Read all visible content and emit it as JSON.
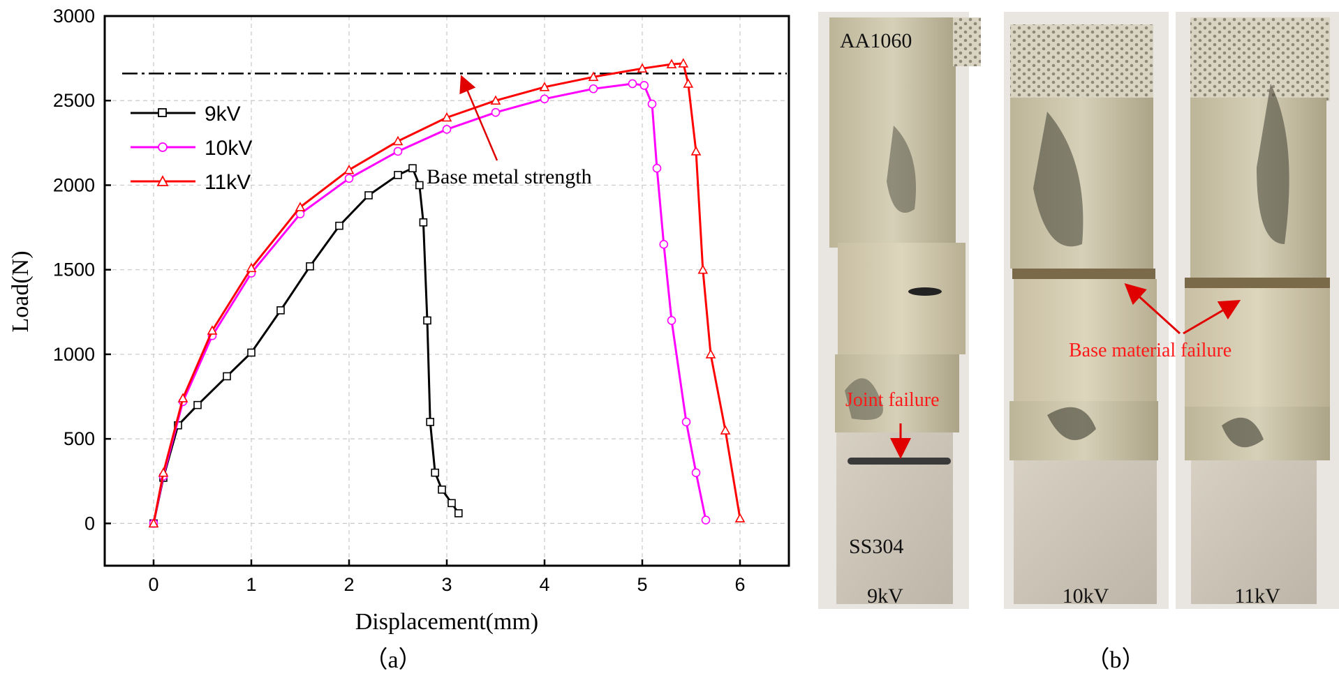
{
  "chart_data": {
    "type": "line",
    "xlabel": "Displacement(mm)",
    "ylabel": "Load(N)",
    "xlim": [
      -0.5,
      6.5
    ],
    "ylim": [
      -250,
      3000
    ],
    "x_ticks": [
      0,
      1,
      2,
      3,
      4,
      5,
      6
    ],
    "y_ticks": [
      0,
      500,
      1000,
      1500,
      2000,
      2500,
      3000
    ],
    "grid": true,
    "legend_position": "top-left",
    "reference_line": {
      "y": 2660,
      "style": "dash-dot",
      "label": "Base metal strength"
    },
    "series": [
      {
        "name": "9kV",
        "color": "#000000",
        "marker": "square",
        "points": [
          [
            0,
            0
          ],
          [
            0.1,
            270
          ],
          [
            0.25,
            580
          ],
          [
            0.45,
            700
          ],
          [
            0.75,
            870
          ],
          [
            1.0,
            1010
          ],
          [
            1.3,
            1260
          ],
          [
            1.6,
            1520
          ],
          [
            1.9,
            1760
          ],
          [
            2.2,
            1940
          ],
          [
            2.5,
            2060
          ],
          [
            2.65,
            2100
          ],
          [
            2.72,
            2000
          ],
          [
            2.76,
            1780
          ],
          [
            2.8,
            1200
          ],
          [
            2.83,
            600
          ],
          [
            2.88,
            300
          ],
          [
            2.95,
            200
          ],
          [
            3.05,
            120
          ],
          [
            3.12,
            60
          ]
        ]
      },
      {
        "name": "10kV",
        "color": "#ff00ff",
        "marker": "circle",
        "points": [
          [
            0,
            0
          ],
          [
            0.1,
            280
          ],
          [
            0.3,
            720
          ],
          [
            0.6,
            1110
          ],
          [
            1.0,
            1480
          ],
          [
            1.5,
            1830
          ],
          [
            2.0,
            2040
          ],
          [
            2.5,
            2200
          ],
          [
            3.0,
            2330
          ],
          [
            3.5,
            2430
          ],
          [
            4.0,
            2510
          ],
          [
            4.5,
            2570
          ],
          [
            4.9,
            2600
          ],
          [
            5.02,
            2590
          ],
          [
            5.1,
            2480
          ],
          [
            5.15,
            2100
          ],
          [
            5.22,
            1650
          ],
          [
            5.3,
            1200
          ],
          [
            5.45,
            600
          ],
          [
            5.55,
            300
          ],
          [
            5.65,
            20
          ]
        ]
      },
      {
        "name": "11kV",
        "color": "#ff0000",
        "marker": "triangle",
        "points": [
          [
            0,
            0
          ],
          [
            0.1,
            300
          ],
          [
            0.3,
            740
          ],
          [
            0.6,
            1140
          ],
          [
            1.0,
            1510
          ],
          [
            1.5,
            1870
          ],
          [
            2.0,
            2090
          ],
          [
            2.5,
            2260
          ],
          [
            3.0,
            2400
          ],
          [
            3.5,
            2500
          ],
          [
            4.0,
            2580
          ],
          [
            4.5,
            2640
          ],
          [
            5.0,
            2690
          ],
          [
            5.3,
            2715
          ],
          [
            5.42,
            2720
          ],
          [
            5.47,
            2600
          ],
          [
            5.55,
            2200
          ],
          [
            5.62,
            1500
          ],
          [
            5.7,
            1000
          ],
          [
            5.85,
            550
          ],
          [
            6.0,
            30
          ]
        ]
      }
    ]
  },
  "annotations": {
    "arrow_label": "Base metal strength"
  },
  "panels": {
    "a_label": "（a）",
    "b_label": "（b）"
  },
  "photo": {
    "aa_label": "AA1060",
    "ss_label": "SS304",
    "joint_failure": "Joint failure",
    "base_failure": "Base material failure",
    "voltages": [
      "9kV",
      "10kV",
      "11kV"
    ]
  }
}
